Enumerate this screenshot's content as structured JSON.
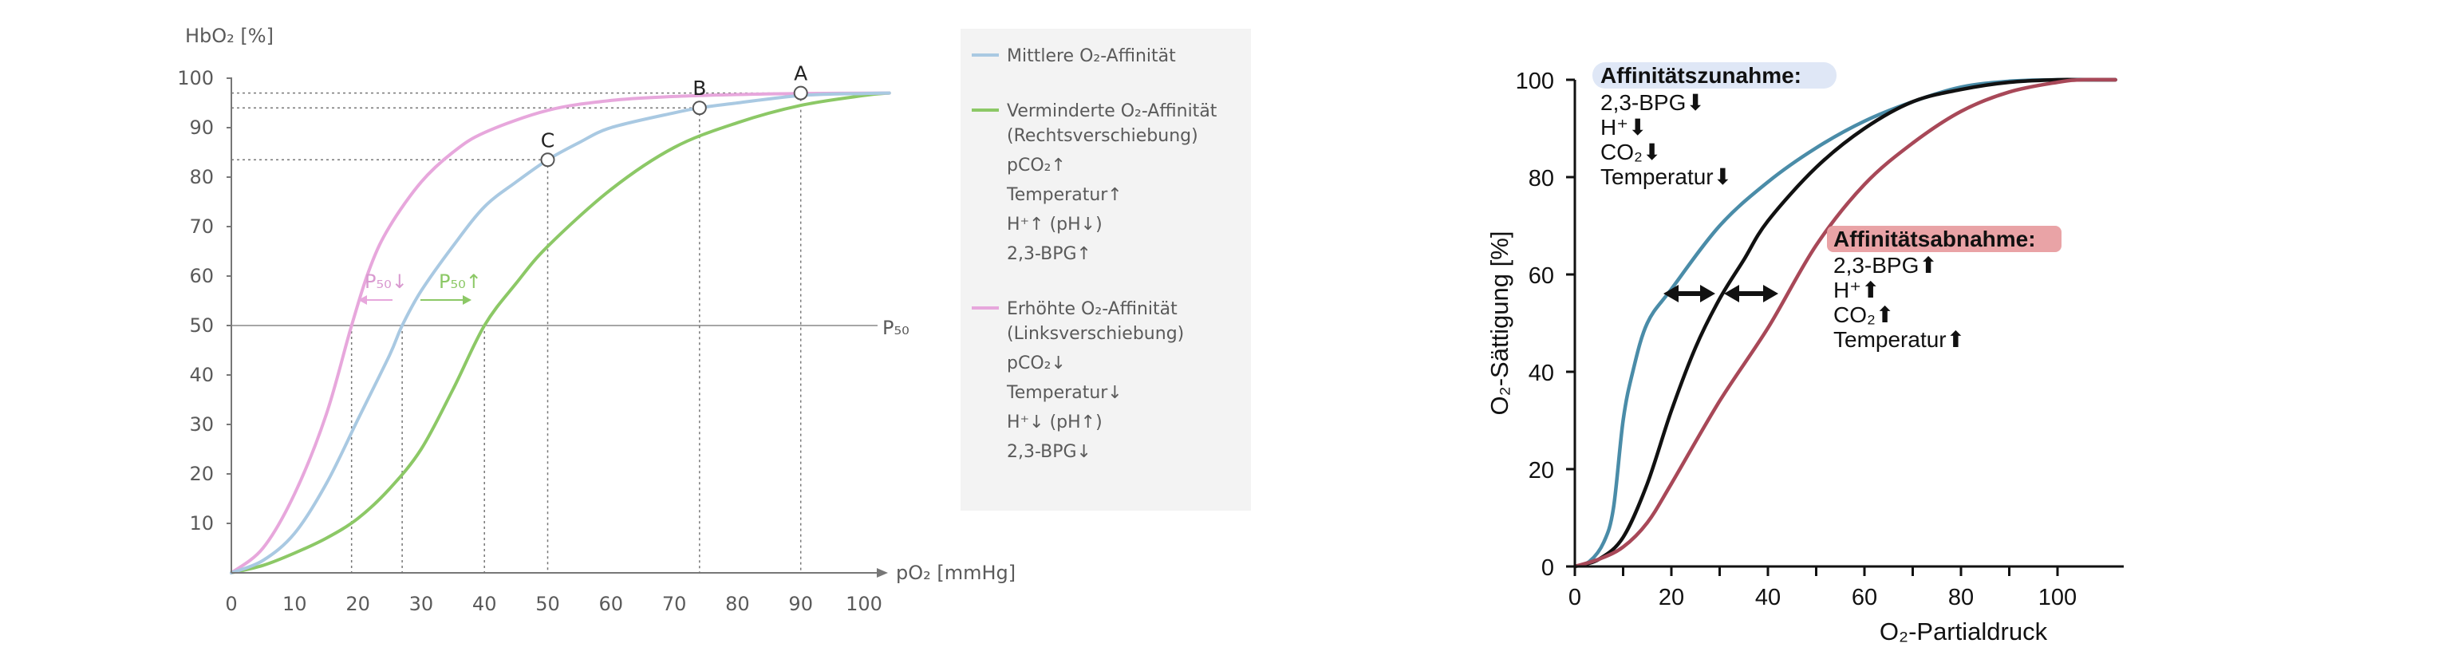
{
  "chart_data": [
    {
      "type": "line",
      "ylabel": "HbO₂ [%]",
      "xlabel": "pO₂ [mmHg]",
      "xlim": [
        0,
        105
      ],
      "ylim": [
        0,
        100
      ],
      "x_ticks": [
        0,
        10,
        20,
        30,
        40,
        50,
        60,
        70,
        80,
        90,
        100
      ],
      "y_ticks": [
        10,
        20,
        30,
        40,
        50,
        60,
        70,
        80,
        90,
        100
      ],
      "grid": false,
      "legend_position": "right",
      "series": [
        {
          "name": "Mittlere O₂-Affinität",
          "color": "#a9c9e2",
          "x": [
            0,
            5,
            10,
            15,
            20,
            25,
            27,
            30,
            35,
            40,
            45,
            50,
            55,
            60,
            70,
            74,
            80,
            90,
            100,
            104
          ],
          "y": [
            0,
            2.5,
            8,
            18,
            31,
            44,
            50,
            57,
            66,
            74,
            79,
            83.5,
            87,
            90,
            93,
            94,
            95,
            96.5,
            96.9,
            97
          ]
        },
        {
          "name": "Verminderte O₂-Affinität (Rechtsverschiebung)",
          "color": "#8cc866",
          "x": [
            0,
            5,
            10,
            15,
            20,
            25,
            30,
            35,
            40,
            45,
            50,
            60,
            70,
            80,
            90,
            100,
            104
          ],
          "y": [
            0,
            1.5,
            4,
            7,
            11,
            17,
            25,
            37,
            50,
            58.5,
            66,
            77.5,
            86,
            91,
            94.5,
            96.5,
            97
          ]
        },
        {
          "name": "Erhöhte O₂-Affinität (Linksverschiebung)",
          "color": "#e7a7dc",
          "x": [
            0,
            5,
            10,
            15,
            19,
            22,
            25,
            30,
            35,
            40,
            50,
            60,
            70,
            80,
            90,
            104
          ],
          "y": [
            0,
            5,
            16,
            32,
            50,
            62,
            70,
            79,
            85,
            89,
            93.5,
            95.5,
            96.3,
            96.7,
            96.9,
            97
          ]
        }
      ],
      "points": [
        {
          "label": "A",
          "x": 90,
          "y": 97
        },
        {
          "label": "B",
          "x": 74,
          "y": 94
        },
        {
          "label": "C",
          "x": 50,
          "y": 83.5
        }
      ],
      "p50": {
        "label": "P₅₀",
        "y": 50,
        "x_values": [
          19,
          27,
          40
        ]
      },
      "annotations": [
        "P₅₀↓",
        "P₅₀↑"
      ],
      "legend_notes": {
        "right_shift": [
          "pCO₂↑",
          "Temperatur↑",
          "H⁺↑ (pH↓)",
          "2,3-BPG↑"
        ],
        "left_shift": [
          "pCO₂↓",
          "Temperatur↓",
          "H⁺↓ (pH↑)",
          "2,3-BPG↓"
        ]
      }
    },
    {
      "type": "line",
      "ylabel": "O₂-Sättigung [%]",
      "xlabel": "O₂-Partialdruck",
      "xlim": [
        0,
        112
      ],
      "ylim": [
        0,
        100
      ],
      "x_ticks": [
        0,
        20,
        40,
        60,
        80,
        100
      ],
      "x_minor_ticks": [
        10,
        30,
        50,
        70,
        90
      ],
      "y_ticks": [
        0,
        20,
        40,
        60,
        80,
        100
      ],
      "grid": false,
      "series": [
        {
          "color": "#4a8ca8",
          "x": [
            0,
            3,
            6,
            8,
            10,
            12,
            15,
            20,
            30,
            40,
            50,
            60,
            70,
            80,
            90,
            100,
            112
          ],
          "y": [
            0,
            1,
            5,
            12,
            30,
            40,
            50,
            57,
            70,
            79,
            86,
            91.5,
            95.5,
            98.5,
            99.7,
            100,
            100
          ]
        },
        {
          "color": "#111111",
          "x": [
            0,
            5,
            10,
            15,
            20,
            25,
            30,
            35,
            40,
            50,
            60,
            70,
            80,
            90,
            100,
            105,
            112
          ],
          "y": [
            0,
            1.5,
            6,
            17,
            32,
            45,
            55,
            63,
            71,
            82,
            90,
            95.5,
            98,
            99.5,
            100,
            100,
            100
          ]
        },
        {
          "color": "#a84858",
          "x": [
            0,
            5,
            10,
            15,
            20,
            30,
            40,
            50,
            60,
            70,
            80,
            90,
            100,
            105,
            112
          ],
          "y": [
            0,
            1.5,
            4,
            9,
            17,
            34,
            49,
            66,
            78.5,
            87,
            93.5,
            97.5,
            99.5,
            100,
            100
          ]
        }
      ],
      "annotations": {
        "increase": {
          "title": "Affinitätszunahme:",
          "highlight": "#dfe7f6",
          "lines": [
            "2,3-BPG⬇",
            "H⁺⬇",
            "CO₂⬇",
            "Temperatur⬇"
          ]
        },
        "decrease": {
          "title": "Affinitätsabnahme:",
          "highlight": "#e9a3a6",
          "lines": [
            "2,3-BPG⬆",
            "H⁺⬆",
            "CO₂⬆",
            "Temperatur⬆"
          ]
        }
      }
    }
  ]
}
